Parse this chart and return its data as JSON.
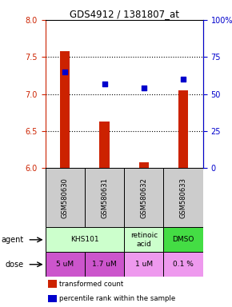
{
  "title": "GDS4912 / 1381807_at",
  "samples": [
    "GSM580630",
    "GSM580631",
    "GSM580632",
    "GSM580633"
  ],
  "bar_values": [
    7.58,
    6.63,
    6.08,
    7.05
  ],
  "bar_color": "#cc2200",
  "scatter_values": [
    65,
    57,
    54,
    60
  ],
  "scatter_color": "#0000cc",
  "ylim_left": [
    6.0,
    8.0
  ],
  "ylim_right": [
    0,
    100
  ],
  "yticks_left": [
    6.0,
    6.5,
    7.0,
    7.5,
    8.0
  ],
  "yticks_right": [
    0,
    25,
    50,
    75,
    100
  ],
  "ytick_labels_right": [
    "0",
    "25",
    "50",
    "75",
    "100%"
  ],
  "hlines": [
    6.5,
    7.0,
    7.5
  ],
  "agent_color_light": "#ccffcc",
  "agent_color_medium": "#44dd44",
  "dose_color_dark": "#cc55cc",
  "dose_color_light": "#ee99ee",
  "sample_color": "#cccccc",
  "legend_bar_label": "transformed count",
  "legend_scatter_label": "percentile rank within the sample",
  "bar_bottom": 6.0,
  "bar_width": 0.25
}
